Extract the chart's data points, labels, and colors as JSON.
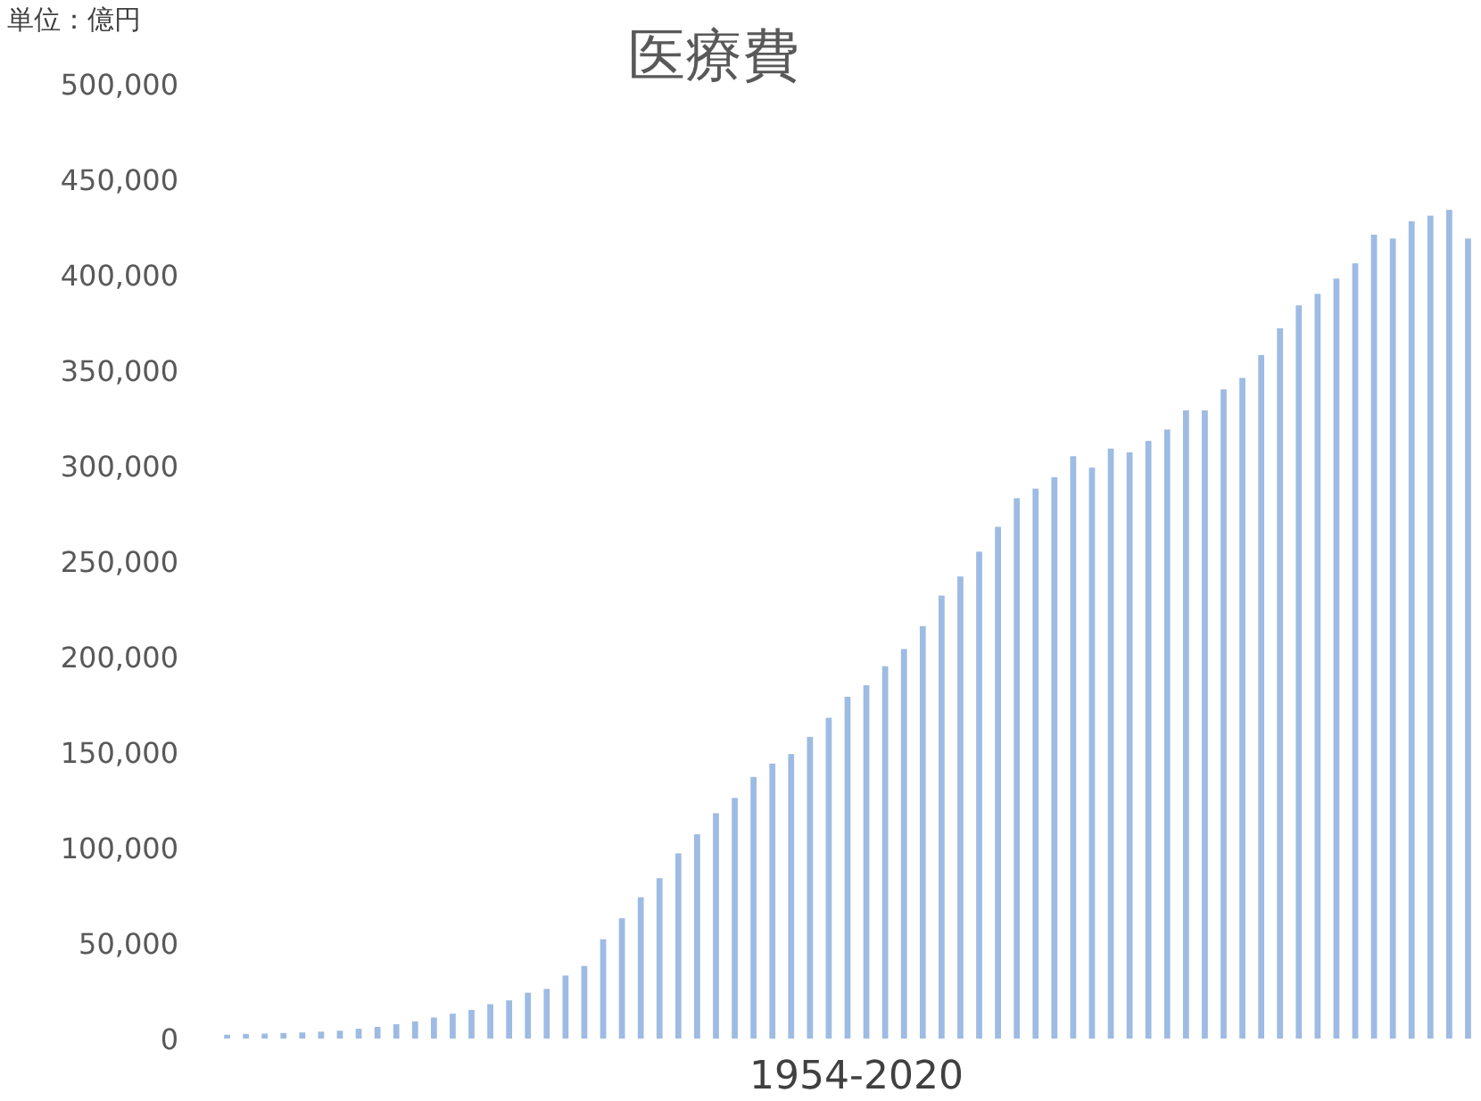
{
  "chart_data": {
    "type": "bar",
    "title": "医療費",
    "xlabel": "1954-2020",
    "annotations": [
      "単位：億円"
    ],
    "categories": [
      null,
      null,
      null,
      null,
      null,
      null,
      null,
      null,
      null,
      null,
      null,
      null,
      null,
      null,
      null,
      null,
      null,
      null,
      null,
      null,
      null,
      null,
      null,
      null,
      null,
      null,
      null,
      null,
      null,
      null,
      null,
      null,
      null,
      null,
      null,
      null,
      null,
      null,
      null,
      null,
      null,
      null,
      null,
      null,
      null,
      null,
      null,
      null,
      null,
      null,
      null,
      null,
      null,
      null,
      null,
      null,
      null,
      null,
      null,
      null,
      null,
      null,
      null,
      null,
      null,
      null,
      null
    ],
    "values": [
      2000,
      2400,
      2600,
      2900,
      3200,
      3600,
      4100,
      5100,
      6100,
      7500,
      9000,
      11000,
      13000,
      15000,
      18000,
      20000,
      24000,
      26000,
      33000,
      38000,
      52000,
      63000,
      74000,
      84000,
      97000,
      107000,
      118000,
      126000,
      137000,
      144000,
      149000,
      158000,
      168000,
      179000,
      185000,
      195000,
      204000,
      216000,
      232000,
      242000,
      255000,
      268000,
      283000,
      288000,
      294000,
      305000,
      299000,
      309000,
      307000,
      313000,
      319000,
      329000,
      329000,
      340000,
      346000,
      358000,
      372000,
      384000,
      390000,
      398000,
      406000,
      421000,
      419000,
      428000,
      431000,
      434000,
      419000
    ],
    "color": "#9dbbe3",
    "ylim": [
      0,
      500000
    ],
    "yticks": [
      {
        "value": 0,
        "label": "0"
      },
      {
        "value": 50000,
        "label": "50,000"
      },
      {
        "value": 100000,
        "label": "100,000"
      },
      {
        "value": 150000,
        "label": "150,000"
      },
      {
        "value": 200000,
        "label": "200,000"
      },
      {
        "value": 250000,
        "label": "250,000"
      },
      {
        "value": 300000,
        "label": "300,000"
      },
      {
        "value": 350000,
        "label": "350,000"
      },
      {
        "value": 400000,
        "label": "400,000"
      },
      {
        "value": 450000,
        "label": "450,000"
      },
      {
        "value": 500000,
        "label": "500,000"
      }
    ],
    "grid": false
  }
}
